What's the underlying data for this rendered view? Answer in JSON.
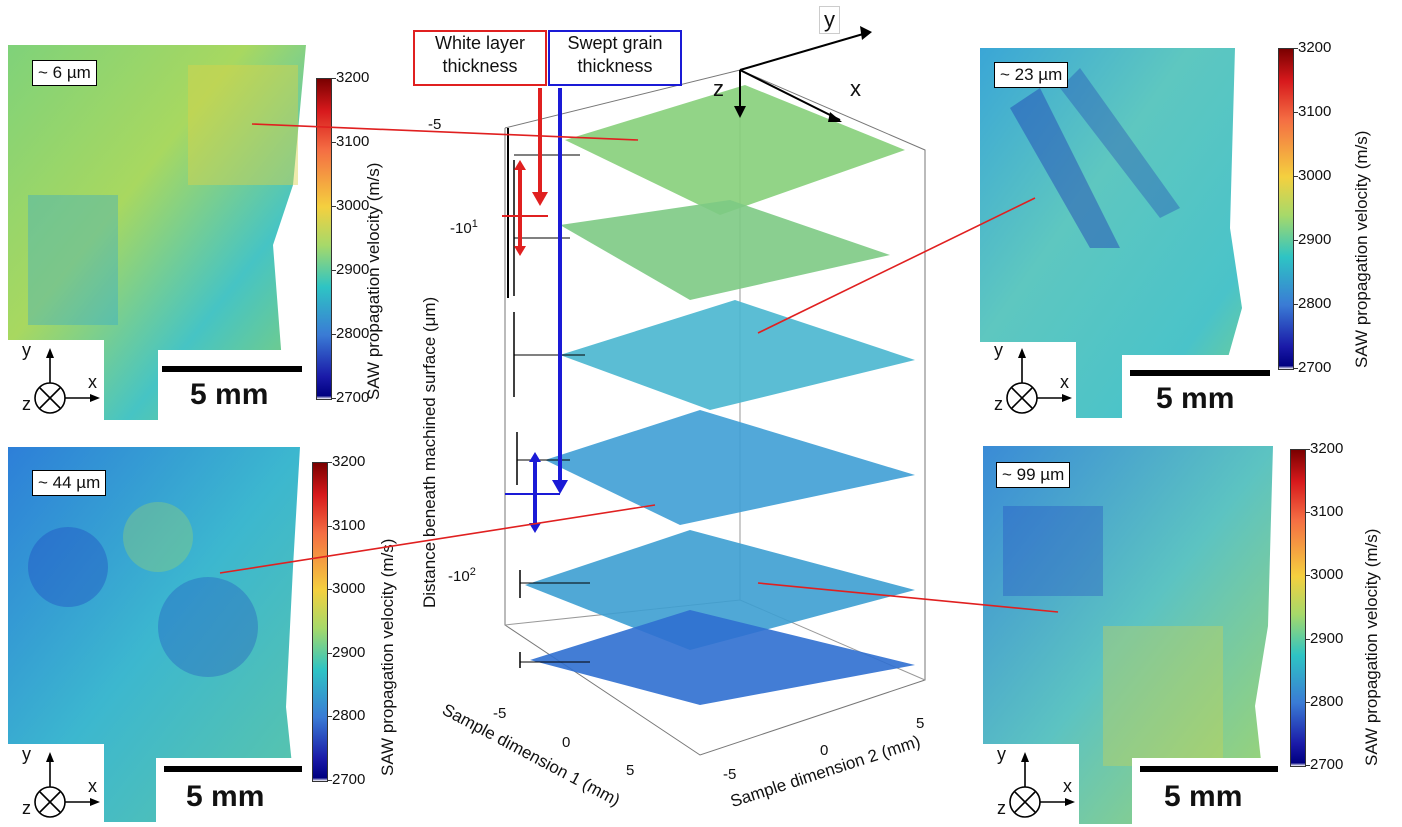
{
  "panels": {
    "top_left": {
      "depth_label": "~ 6 µm"
    },
    "mid_right": {
      "depth_label": "~ 23 µm"
    },
    "bottom_left": {
      "depth_label": "~ 44 µm"
    },
    "bottom_right": {
      "depth_label": "~ 99 µm"
    }
  },
  "scale_bar": {
    "label": "5 mm"
  },
  "inset_axes": {
    "y": "y",
    "x": "x",
    "z": "z"
  },
  "colorbar": {
    "label": "SAW propagation velocity (m/s)",
    "ticks": [
      "3200",
      "3100",
      "3000",
      "2900",
      "2800",
      "2700"
    ]
  },
  "legend": {
    "white_layer": "White layer thickness",
    "swept_grain": "Swept grain thickness",
    "white_layer_color": "#e02020",
    "swept_grain_color": "#1a1ad6"
  },
  "main_axes": {
    "z_label": "Distance beneath machined surface (μm)",
    "x_label": "Sample dimension 1 (mm)",
    "y_label": "Sample dimension 2 (mm)",
    "z_ticks": [
      "-5",
      "-10",
      "-10"
    ],
    "z_tick_sup": [
      "",
      "1",
      "2"
    ],
    "x_ticks": [
      "-5",
      "0",
      "5"
    ],
    "y_ticks": [
      "-5",
      "0",
      "5"
    ],
    "axis_y": "y",
    "axis_x": "x",
    "axis_z": "z"
  },
  "colors": {
    "link_line": "#e02020"
  }
}
